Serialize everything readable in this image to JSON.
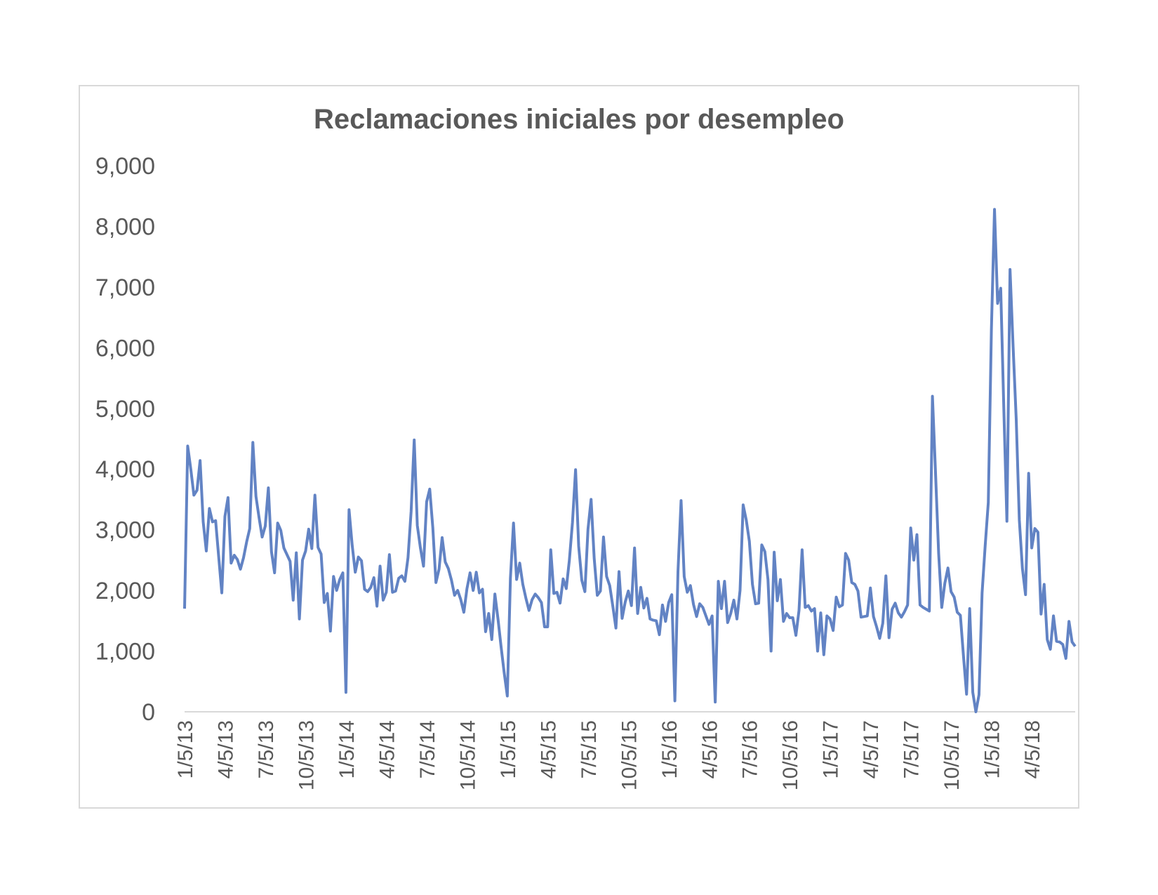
{
  "chart_data": {
    "type": "line",
    "title": "Reclamaciones iniciales por desempleo",
    "xlabel": "",
    "ylabel": "",
    "ylim": [
      0,
      9000
    ],
    "y_ticks": [
      "0",
      "1,000",
      "2,000",
      "3,000",
      "4,000",
      "5,000",
      "6,000",
      "7,000",
      "8,000",
      "9,000"
    ],
    "x_ticks": [
      "1/5/13",
      "4/5/13",
      "7/5/13",
      "10/5/13",
      "1/5/14",
      "4/5/14",
      "7/5/14",
      "10/5/14",
      "1/5/15",
      "4/5/15",
      "7/5/15",
      "10/5/15",
      "1/5/16",
      "4/5/16",
      "7/5/16",
      "10/5/16",
      "1/5/17",
      "4/5/17",
      "7/5/17",
      "10/5/17",
      "1/5/18",
      "4/5/18"
    ],
    "grid": false,
    "legend": "none",
    "series": [
      {
        "color": "#6283c4",
        "values": [
          1700,
          4380,
          4000,
          3570,
          3650,
          4140,
          3130,
          2650,
          3350,
          3130,
          3150,
          2550,
          1960,
          3220,
          3530,
          2450,
          2580,
          2510,
          2350,
          2540,
          2800,
          3020,
          4440,
          3550,
          3200,
          2880,
          3060,
          3690,
          2640,
          2290,
          3110,
          2990,
          2700,
          2590,
          2480,
          1840,
          2620,
          1530,
          2500,
          2650,
          3010,
          2690,
          3570,
          2710,
          2600,
          1800,
          1950,
          1330,
          2230,
          2000,
          2180,
          2290,
          320,
          3330,
          2750,
          2300,
          2550,
          2490,
          2020,
          1980,
          2050,
          2210,
          1740,
          2400,
          1840,
          1970,
          2590,
          1970,
          1990,
          2200,
          2240,
          2150,
          2540,
          3300,
          4480,
          3070,
          2700,
          2400,
          3460,
          3670,
          3030,
          2130,
          2350,
          2870,
          2470,
          2360,
          2170,
          1920,
          2000,
          1850,
          1640,
          2030,
          2290,
          2000,
          2300,
          1960,
          2020,
          1320,
          1620,
          1190,
          1940,
          1530,
          1070,
          640,
          260,
          2200,
          3110,
          2180,
          2450,
          2100,
          1870,
          1670,
          1850,
          1940,
          1880,
          1800,
          1400,
          1400,
          2670,
          1950,
          1970,
          1790,
          2190,
          2030,
          2500,
          3120,
          3990,
          2730,
          2170,
          1980,
          3010,
          3500,
          2530,
          1920,
          1990,
          2880,
          2230,
          2080,
          1740,
          1380,
          2310,
          1540,
          1810,
          1990,
          1750,
          2700,
          1620,
          2050,
          1710,
          1870,
          1530,
          1510,
          1500,
          1270,
          1760,
          1490,
          1800,
          1930,
          180,
          2310,
          3480,
          2230,
          1970,
          2080,
          1770,
          1570,
          1780,
          1720,
          1580,
          1440,
          1580,
          160,
          2150,
          1700,
          2150,
          1470,
          1620,
          1840,
          1530,
          2000,
          3410,
          3160,
          2810,
          2100,
          1780,
          1790,
          2750,
          2640,
          2180,
          1000,
          2630,
          1830,
          2180,
          1490,
          1620,
          1550,
          1550,
          1260,
          1670,
          2670,
          1720,
          1750,
          1660,
          1700,
          1000,
          1630,
          940,
          1580,
          1530,
          1340,
          1890,
          1730,
          1760,
          2610,
          2500,
          2130,
          2100,
          1990,
          1560,
          1570,
          1580,
          2040,
          1570,
          1400,
          1210,
          1460,
          2240,
          1220,
          1690,
          1790,
          1630,
          1560,
          1650,
          1760,
          3030,
          2500,
          2920,
          1760,
          1720,
          1690,
          1660,
          5200,
          3930,
          2610,
          1720,
          2120,
          2370,
          1980,
          1890,
          1640,
          1590,
          920,
          290,
          1700,
          320,
          0,
          280,
          1960,
          2740,
          3450,
          6300,
          8280,
          6730,
          6980,
          5000,
          3140,
          7290,
          6010,
          4820,
          3160,
          2360,
          1930,
          3930,
          2700,
          3020,
          2960,
          1610,
          2100,
          1190,
          1030,
          1580,
          1160,
          1150,
          1110,
          880,
          1490,
          1150,
          1080
        ]
      }
    ]
  }
}
